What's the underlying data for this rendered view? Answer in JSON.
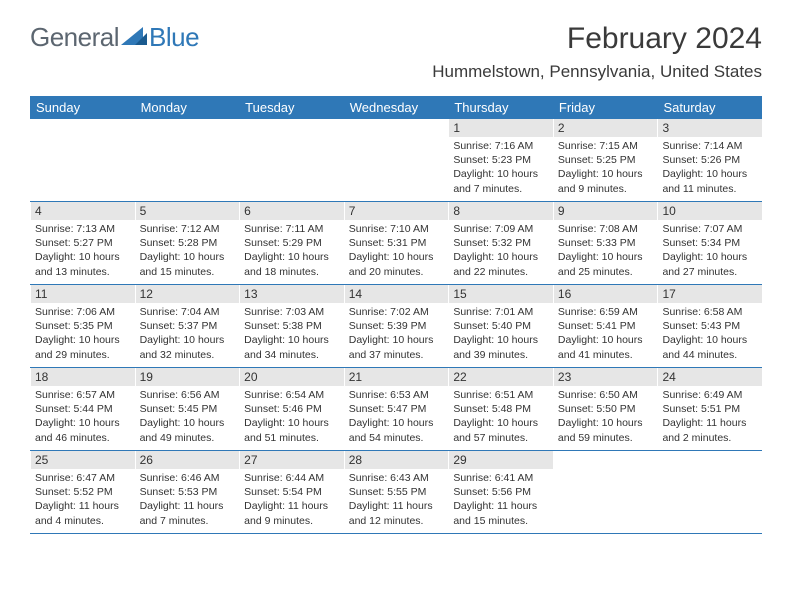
{
  "logo": {
    "general": "General",
    "blue": "Blue"
  },
  "title": "February 2024",
  "location": "Hummelstown, Pennsylvania, United States",
  "colors": {
    "header_bg": "#2f78b7",
    "header_text": "#ffffff",
    "daynum_bg": "#e6e6e6",
    "border": "#2f78b7",
    "text": "#333333",
    "logo_gray": "#5c6670",
    "logo_blue": "#2f78b7",
    "background": "#ffffff"
  },
  "day_names": [
    "Sunday",
    "Monday",
    "Tuesday",
    "Wednesday",
    "Thursday",
    "Friday",
    "Saturday"
  ],
  "weeks": [
    [
      {
        "empty": true
      },
      {
        "empty": true
      },
      {
        "empty": true
      },
      {
        "empty": true
      },
      {
        "num": "1",
        "sunrise": "Sunrise: 7:16 AM",
        "sunset": "Sunset: 5:23 PM",
        "daylight": "Daylight: 10 hours and 7 minutes."
      },
      {
        "num": "2",
        "sunrise": "Sunrise: 7:15 AM",
        "sunset": "Sunset: 5:25 PM",
        "daylight": "Daylight: 10 hours and 9 minutes."
      },
      {
        "num": "3",
        "sunrise": "Sunrise: 7:14 AM",
        "sunset": "Sunset: 5:26 PM",
        "daylight": "Daylight: 10 hours and 11 minutes."
      }
    ],
    [
      {
        "num": "4",
        "sunrise": "Sunrise: 7:13 AM",
        "sunset": "Sunset: 5:27 PM",
        "daylight": "Daylight: 10 hours and 13 minutes."
      },
      {
        "num": "5",
        "sunrise": "Sunrise: 7:12 AM",
        "sunset": "Sunset: 5:28 PM",
        "daylight": "Daylight: 10 hours and 15 minutes."
      },
      {
        "num": "6",
        "sunrise": "Sunrise: 7:11 AM",
        "sunset": "Sunset: 5:29 PM",
        "daylight": "Daylight: 10 hours and 18 minutes."
      },
      {
        "num": "7",
        "sunrise": "Sunrise: 7:10 AM",
        "sunset": "Sunset: 5:31 PM",
        "daylight": "Daylight: 10 hours and 20 minutes."
      },
      {
        "num": "8",
        "sunrise": "Sunrise: 7:09 AM",
        "sunset": "Sunset: 5:32 PM",
        "daylight": "Daylight: 10 hours and 22 minutes."
      },
      {
        "num": "9",
        "sunrise": "Sunrise: 7:08 AM",
        "sunset": "Sunset: 5:33 PM",
        "daylight": "Daylight: 10 hours and 25 minutes."
      },
      {
        "num": "10",
        "sunrise": "Sunrise: 7:07 AM",
        "sunset": "Sunset: 5:34 PM",
        "daylight": "Daylight: 10 hours and 27 minutes."
      }
    ],
    [
      {
        "num": "11",
        "sunrise": "Sunrise: 7:06 AM",
        "sunset": "Sunset: 5:35 PM",
        "daylight": "Daylight: 10 hours and 29 minutes."
      },
      {
        "num": "12",
        "sunrise": "Sunrise: 7:04 AM",
        "sunset": "Sunset: 5:37 PM",
        "daylight": "Daylight: 10 hours and 32 minutes."
      },
      {
        "num": "13",
        "sunrise": "Sunrise: 7:03 AM",
        "sunset": "Sunset: 5:38 PM",
        "daylight": "Daylight: 10 hours and 34 minutes."
      },
      {
        "num": "14",
        "sunrise": "Sunrise: 7:02 AM",
        "sunset": "Sunset: 5:39 PM",
        "daylight": "Daylight: 10 hours and 37 minutes."
      },
      {
        "num": "15",
        "sunrise": "Sunrise: 7:01 AM",
        "sunset": "Sunset: 5:40 PM",
        "daylight": "Daylight: 10 hours and 39 minutes."
      },
      {
        "num": "16",
        "sunrise": "Sunrise: 6:59 AM",
        "sunset": "Sunset: 5:41 PM",
        "daylight": "Daylight: 10 hours and 41 minutes."
      },
      {
        "num": "17",
        "sunrise": "Sunrise: 6:58 AM",
        "sunset": "Sunset: 5:43 PM",
        "daylight": "Daylight: 10 hours and 44 minutes."
      }
    ],
    [
      {
        "num": "18",
        "sunrise": "Sunrise: 6:57 AM",
        "sunset": "Sunset: 5:44 PM",
        "daylight": "Daylight: 10 hours and 46 minutes."
      },
      {
        "num": "19",
        "sunrise": "Sunrise: 6:56 AM",
        "sunset": "Sunset: 5:45 PM",
        "daylight": "Daylight: 10 hours and 49 minutes."
      },
      {
        "num": "20",
        "sunrise": "Sunrise: 6:54 AM",
        "sunset": "Sunset: 5:46 PM",
        "daylight": "Daylight: 10 hours and 51 minutes."
      },
      {
        "num": "21",
        "sunrise": "Sunrise: 6:53 AM",
        "sunset": "Sunset: 5:47 PM",
        "daylight": "Daylight: 10 hours and 54 minutes."
      },
      {
        "num": "22",
        "sunrise": "Sunrise: 6:51 AM",
        "sunset": "Sunset: 5:48 PM",
        "daylight": "Daylight: 10 hours and 57 minutes."
      },
      {
        "num": "23",
        "sunrise": "Sunrise: 6:50 AM",
        "sunset": "Sunset: 5:50 PM",
        "daylight": "Daylight: 10 hours and 59 minutes."
      },
      {
        "num": "24",
        "sunrise": "Sunrise: 6:49 AM",
        "sunset": "Sunset: 5:51 PM",
        "daylight": "Daylight: 11 hours and 2 minutes."
      }
    ],
    [
      {
        "num": "25",
        "sunrise": "Sunrise: 6:47 AM",
        "sunset": "Sunset: 5:52 PM",
        "daylight": "Daylight: 11 hours and 4 minutes."
      },
      {
        "num": "26",
        "sunrise": "Sunrise: 6:46 AM",
        "sunset": "Sunset: 5:53 PM",
        "daylight": "Daylight: 11 hours and 7 minutes."
      },
      {
        "num": "27",
        "sunrise": "Sunrise: 6:44 AM",
        "sunset": "Sunset: 5:54 PM",
        "daylight": "Daylight: 11 hours and 9 minutes."
      },
      {
        "num": "28",
        "sunrise": "Sunrise: 6:43 AM",
        "sunset": "Sunset: 5:55 PM",
        "daylight": "Daylight: 11 hours and 12 minutes."
      },
      {
        "num": "29",
        "sunrise": "Sunrise: 6:41 AM",
        "sunset": "Sunset: 5:56 PM",
        "daylight": "Daylight: 11 hours and 15 minutes."
      },
      {
        "empty": true
      },
      {
        "empty": true
      }
    ]
  ]
}
